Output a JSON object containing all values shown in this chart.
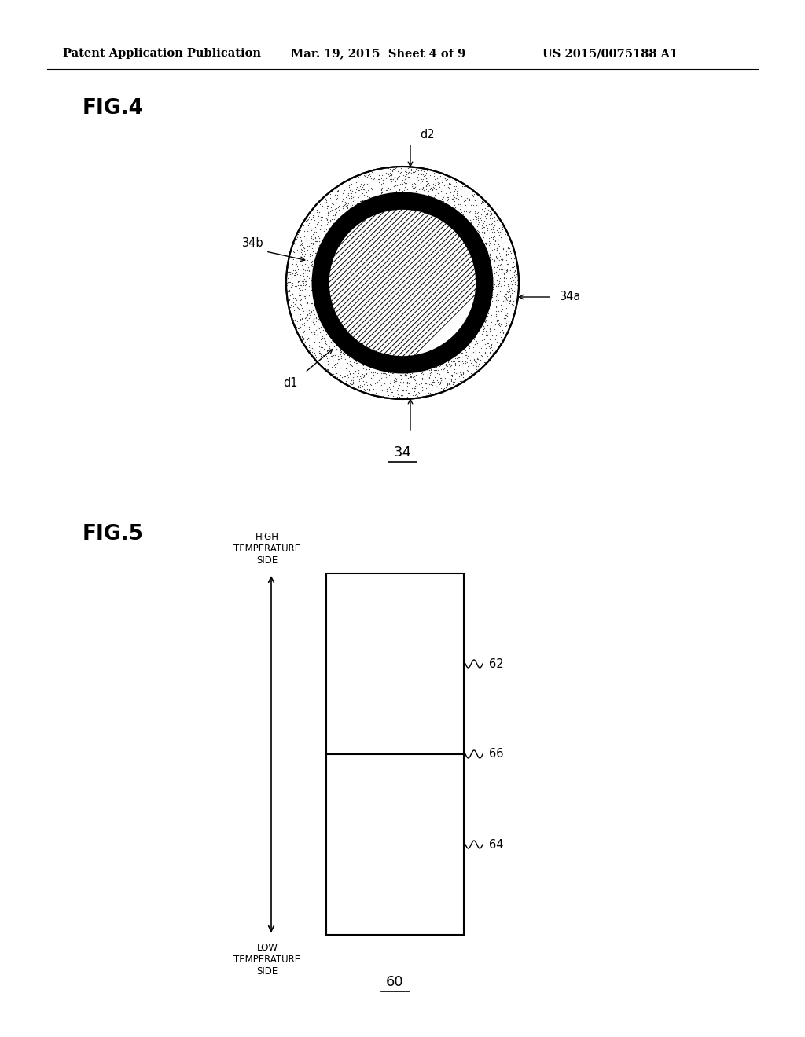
{
  "background_color": "#ffffff",
  "header_left": "Patent Application Publication",
  "header_mid": "Mar. 19, 2015  Sheet 4 of 9",
  "header_right": "US 2015/0075188 A1",
  "fig4_label": "FIG.4",
  "fig5_label": "FIG.5",
  "fig4_ref": "34",
  "fig5_ref": "60",
  "label_34a": "34a",
  "label_34b": "34b",
  "label_d1": "d1",
  "label_d2": "d2",
  "label_62": "62",
  "label_64": "64",
  "label_66": "66",
  "high_temp_text": "HIGH\nTEMPERATURE\nSIDE",
  "low_temp_text": "LOW\nTEMPERATURE\nSIDE"
}
